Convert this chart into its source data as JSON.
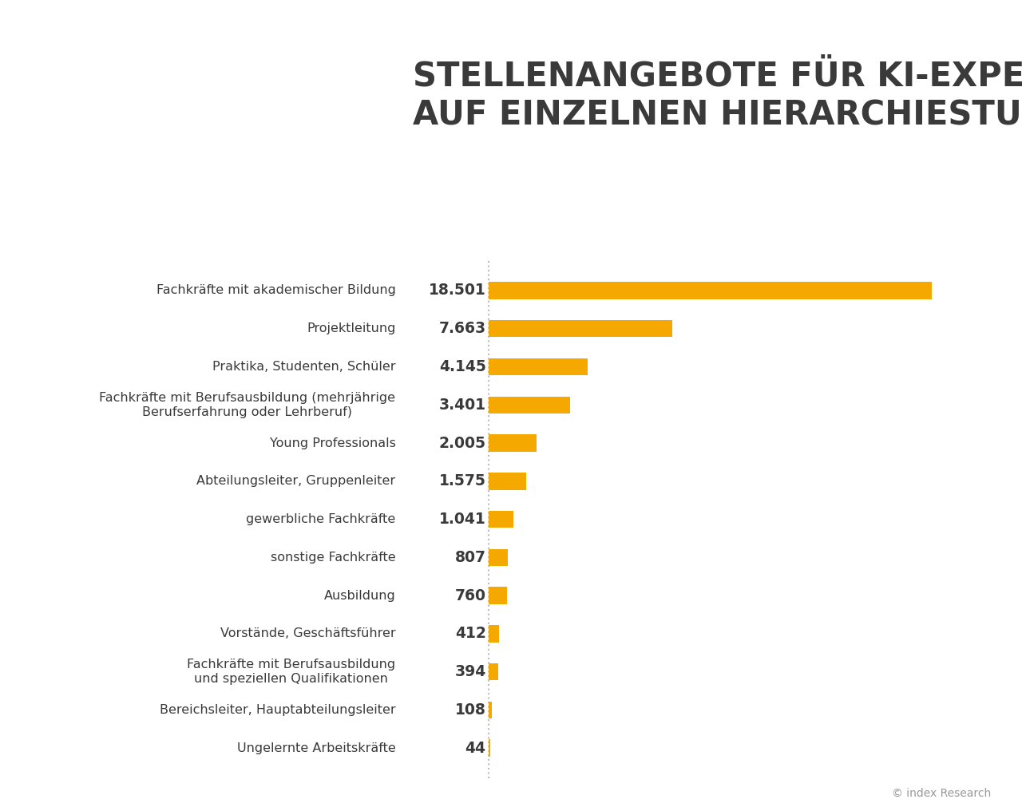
{
  "title_line1": "STELLENANGEBOTE FÜR KI-EXPERTEN",
  "title_line2": "AUF EINZELNEN HIERARCHIESTUFEN",
  "categories": [
    "Fachkräfte mit akademischer Bildung",
    "Projektleitung",
    "Praktika, Studenten, Schüler",
    "Fachkräfte mit Berufsausbildung (mehrjährige\nBerufserfahrung oder Lehrberuf)",
    "Young Professionals",
    "Abteilungsleiter, Gruppenleiter",
    "gewerbliche Fachkräfte",
    "sonstige Fachkräfte",
    "Ausbildung",
    "Vorstände, Geschäftsführer",
    "Fachkräfte mit Berufsausbildung\nund speziellen Qualifikationen",
    "Bereichsleiter, Hauptabteilungsleiter",
    "Ungelernte Arbeitskräfte"
  ],
  "values": [
    18501,
    7663,
    4145,
    3401,
    2005,
    1575,
    1041,
    807,
    760,
    412,
    394,
    108,
    44
  ],
  "value_labels": [
    "18.501",
    "7.663",
    "4.145",
    "3.401",
    "2.005",
    "1.575",
    "1.041",
    "807",
    "760",
    "412",
    "394",
    "108",
    "44"
  ],
  "bar_color": "#F5A800",
  "background_color": "#FFFFFF",
  "title_color": "#3A3A3A",
  "label_color": "#3A3A3A",
  "value_color": "#3A3A3A",
  "credit_text": "© index Research",
  "credit_color": "#999999",
  "title_fontsize": 30,
  "label_fontsize": 11.5,
  "value_fontsize": 13.5
}
